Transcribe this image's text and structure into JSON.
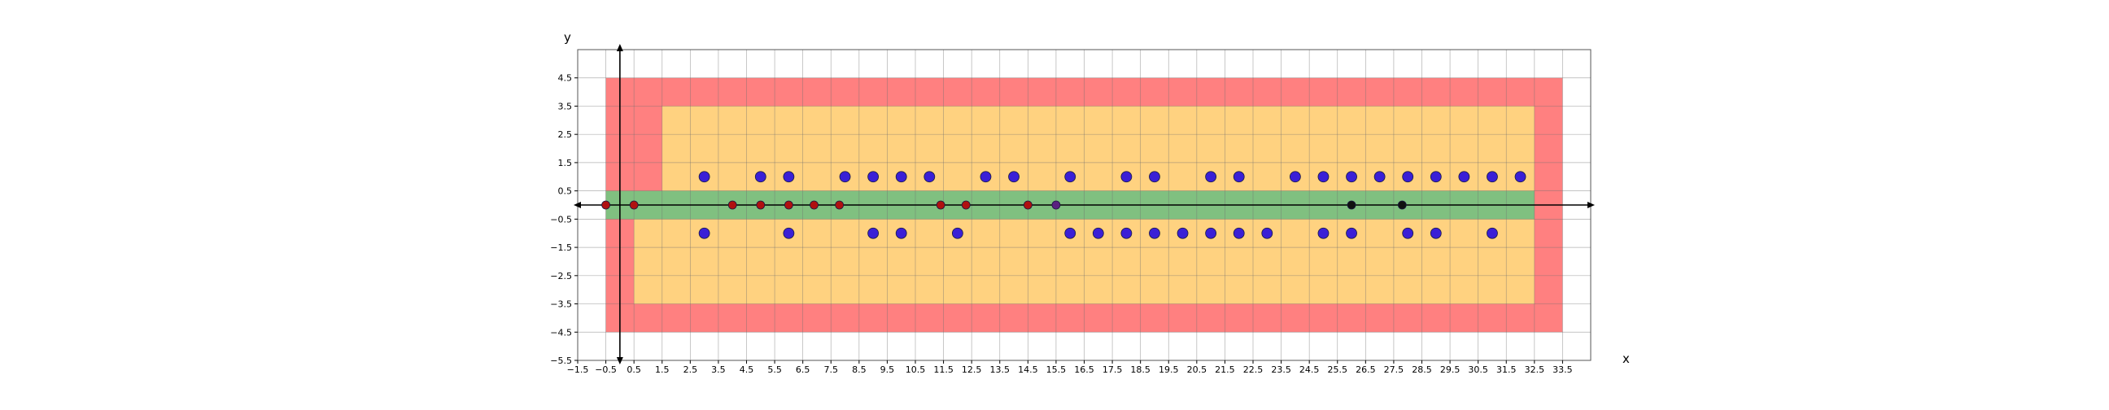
{
  "chart_data": {
    "type": "scatter",
    "title": "",
    "xlabel": "x",
    "ylabel": "y",
    "xlim": [
      -1.5,
      34.5
    ],
    "ylim": [
      -5.5,
      5.5
    ],
    "grid": true,
    "x_tick_labels": [
      "-1.5",
      "-0.5",
      "0.5",
      "1.5",
      "2.5",
      "3.5",
      "4.5",
      "5.5",
      "6.5",
      "7.5",
      "8.5",
      "9.5",
      "10.5",
      "11.5",
      "12.5",
      "13.5",
      "14.5",
      "15.5",
      "16.5",
      "17.5",
      "18.5",
      "19.5",
      "20.5",
      "21.5",
      "22.5",
      "23.5",
      "24.5",
      "25.5",
      "26.5",
      "27.5",
      "28.5",
      "29.5",
      "30.5",
      "31.5",
      "32.5",
      "33.5"
    ],
    "y_tick_labels": [
      "4.5",
      "3.5",
      "2.5",
      "1.5",
      "0.5",
      "-0.5",
      "-1.5",
      "-2.5",
      "-3.5",
      "-4.5",
      "-5.5"
    ],
    "regions": [
      {
        "color": "#ff8080",
        "x": [
          -0.5,
          33.5
        ],
        "y": [
          -4.5,
          4.5
        ]
      },
      {
        "color": "#ffd280",
        "x": [
          1.5,
          32.5
        ],
        "y": [
          0.5,
          3.5
        ]
      },
      {
        "color": "#ffd280",
        "x": [
          0.5,
          32.5
        ],
        "y": [
          -3.5,
          -0.5
        ]
      },
      {
        "color": "#80c080",
        "x": [
          -0.5,
          32.5
        ],
        "y": [
          -0.5,
          0.5
        ]
      }
    ],
    "series": [
      {
        "color": "#3a1fd6",
        "points": [
          [
            3,
            1
          ],
          [
            5,
            1
          ],
          [
            6,
            1
          ],
          [
            8,
            1
          ],
          [
            9,
            1
          ],
          [
            10,
            1
          ],
          [
            11,
            1
          ],
          [
            13,
            1
          ],
          [
            14,
            1
          ],
          [
            16,
            1
          ],
          [
            18,
            1
          ],
          [
            19,
            1
          ],
          [
            21,
            1
          ],
          [
            22,
            1
          ],
          [
            24,
            1
          ],
          [
            25,
            1
          ],
          [
            26,
            1
          ],
          [
            27,
            1
          ],
          [
            28,
            1
          ],
          [
            29,
            1
          ],
          [
            30,
            1
          ],
          [
            31,
            1
          ],
          [
            32,
            1
          ],
          [
            3,
            -1
          ],
          [
            6,
            -1
          ],
          [
            9,
            -1
          ],
          [
            10,
            -1
          ],
          [
            12,
            -1
          ],
          [
            16,
            -1
          ],
          [
            17,
            -1
          ],
          [
            18,
            -1
          ],
          [
            19,
            -1
          ],
          [
            20,
            -1
          ],
          [
            21,
            -1
          ],
          [
            22,
            -1
          ],
          [
            23,
            -1
          ],
          [
            25,
            -1
          ],
          [
            26,
            -1
          ],
          [
            28,
            -1
          ],
          [
            29,
            -1
          ],
          [
            31,
            -1
          ]
        ]
      },
      {
        "color": "#b01010",
        "points": [
          [
            -0.5,
            0
          ],
          [
            0.5,
            0
          ],
          [
            4,
            0
          ],
          [
            5,
            0
          ],
          [
            6,
            0
          ],
          [
            6.9,
            0
          ],
          [
            7.8,
            0
          ],
          [
            11.4,
            0
          ],
          [
            12.3,
            0
          ],
          [
            14.5,
            0
          ]
        ]
      },
      {
        "color": "#5a2080",
        "points": [
          [
            15.5,
            0
          ]
        ]
      },
      {
        "color": "#101010",
        "points": [
          [
            26,
            0
          ],
          [
            27.8,
            0
          ]
        ]
      }
    ]
  }
}
